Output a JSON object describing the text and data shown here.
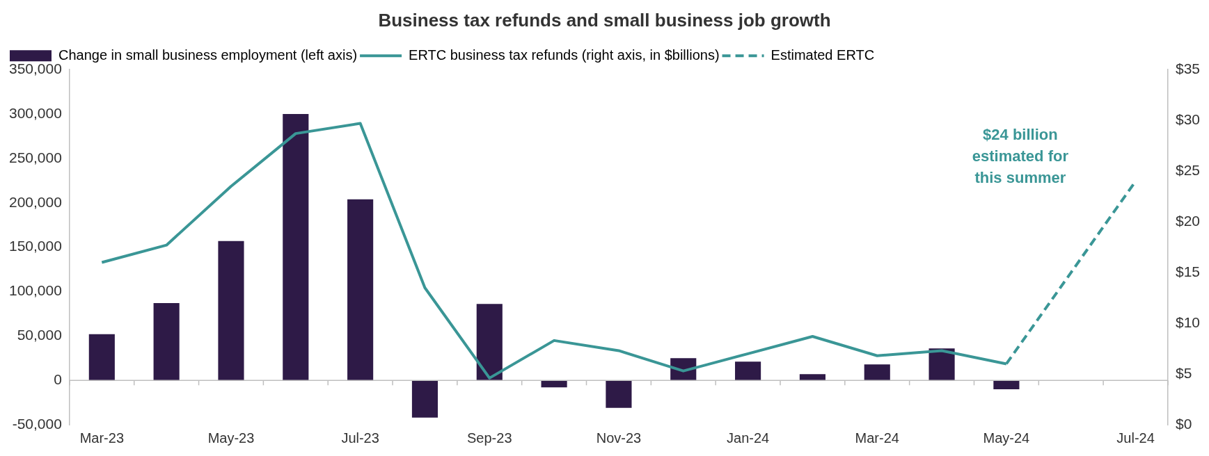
{
  "chart_data": {
    "type": "bar",
    "title": "Business tax refunds and small business job growth",
    "categories": [
      "Mar-23",
      null,
      "May-23",
      null,
      "Jul-23",
      null,
      "Sep-23",
      null,
      "Nov-23",
      null,
      "Jan-24",
      null,
      "Mar-24",
      null,
      "May-24",
      null,
      "Jul-24"
    ],
    "series": [
      {
        "name": "Change in small business employment (left axis)",
        "color": "#2e1a47",
        "values": [
          52000,
          87000,
          157000,
          300000,
          204000,
          -42000,
          86000,
          -8000,
          -31000,
          25000,
          21000,
          7000,
          18000,
          36000,
          -10000,
          null,
          null
        ]
      },
      {
        "name": "ERTC business tax refunds (right axis, in $billions)",
        "type": "line",
        "axis": "y2",
        "color": "#3a9696",
        "line_style": "solid",
        "values": [
          16,
          17.7,
          23.5,
          28.7,
          29.7,
          13.5,
          4.6,
          8.3,
          7.3,
          5.3,
          7.0,
          8.7,
          6.8,
          7.3,
          6.0,
          null,
          null
        ]
      },
      {
        "name": "Estimated ERTC",
        "type": "line",
        "axis": "y2",
        "color": "#3a9696",
        "line_style": "dashed",
        "values": [
          null,
          null,
          null,
          null,
          null,
          null,
          null,
          null,
          null,
          null,
          null,
          null,
          null,
          null,
          6.0,
          15,
          24
        ]
      }
    ],
    "ylim": [
      -50000,
      350000
    ],
    "yticks": [
      {
        "value": -50000,
        "label": "-50,000"
      },
      0,
      {
        "value": 50000,
        "label": "50,000"
      },
      {
        "value": 100000,
        "label": "100,000"
      },
      {
        "value": 150000,
        "label": "150,000"
      },
      {
        "value": 200000,
        "label": "200,000"
      },
      {
        "value": 250000,
        "label": "250,000"
      },
      {
        "value": 300000,
        "label": "300,000"
      },
      {
        "value": 350000,
        "label": "350,000"
      }
    ],
    "y2lim": [
      0,
      35
    ],
    "y2ticks": [
      {
        "value": 0,
        "label": "$0"
      },
      {
        "value": 5,
        "label": "$5"
      },
      {
        "value": 10,
        "label": "$10"
      },
      {
        "value": 15,
        "label": "$15"
      },
      {
        "value": 20,
        "label": "$20"
      },
      {
        "value": 25,
        "label": "$25"
      },
      {
        "value": 30,
        "label": "$30"
      },
      {
        "value": 35,
        "label": "$35"
      }
    ],
    "legend": "top left",
    "marker": "none",
    "annotations": [
      "$24 billion\nestimated for\nthis summer"
    ]
  }
}
